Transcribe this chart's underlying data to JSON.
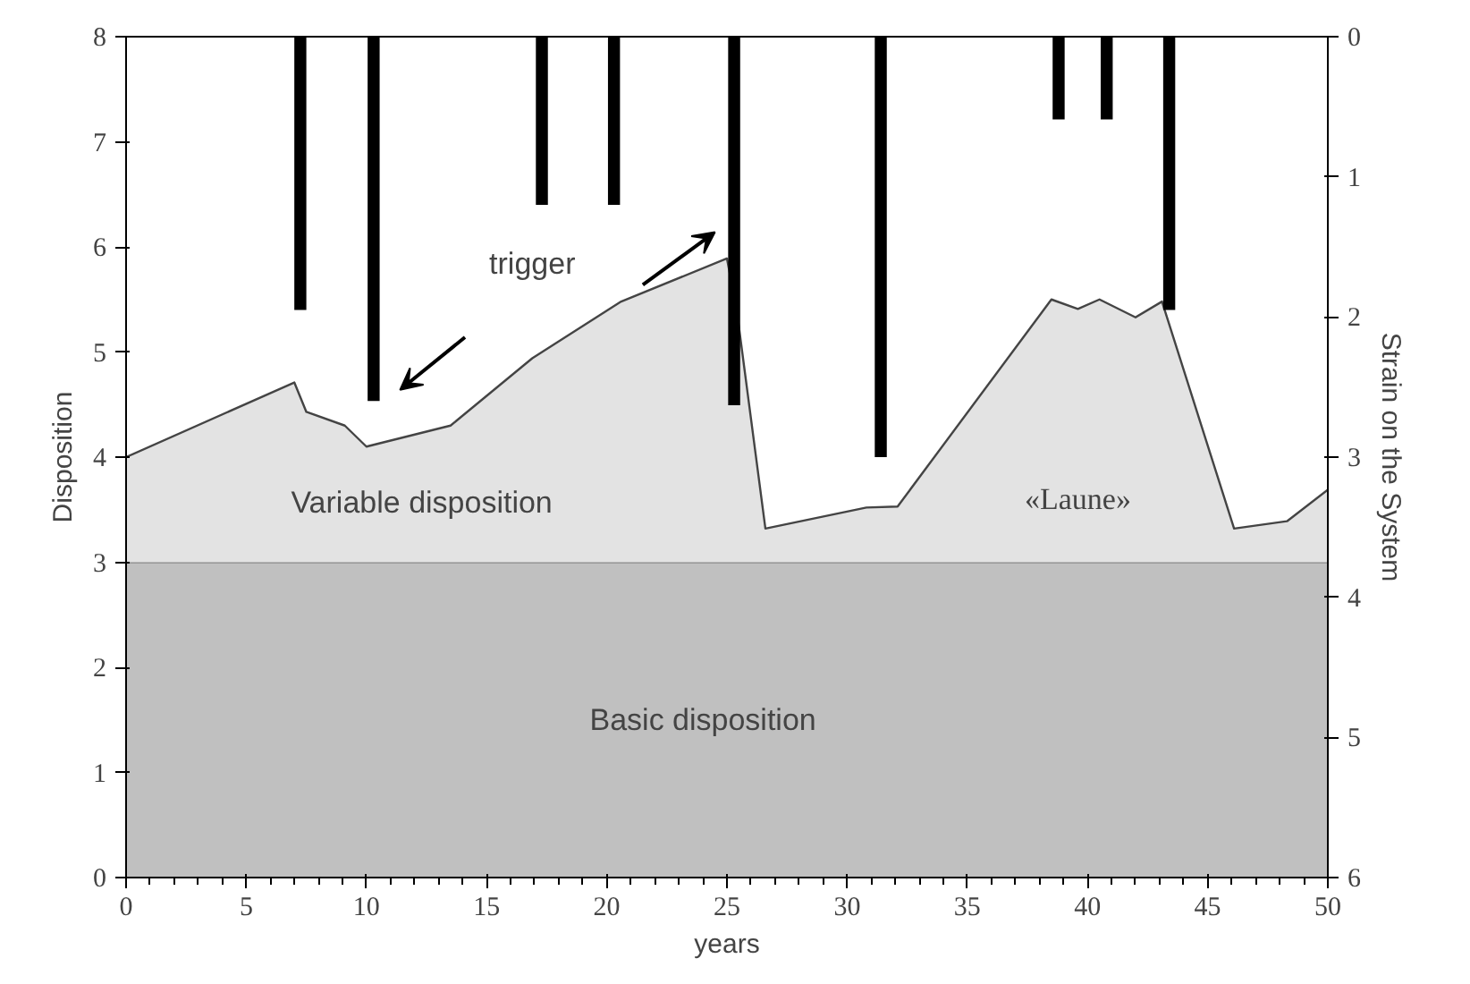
{
  "chart_data": {
    "type": "area",
    "stacked": true,
    "xlabel": "years",
    "ylabel": "Disposition",
    "y2label": "Strain on the System",
    "x": [
      0,
      7.0,
      7.5,
      9.1,
      10.0,
      13.5,
      16.9,
      20.6,
      25.0,
      25.4,
      26.6,
      30.8,
      32.1,
      38.5,
      39.6,
      40.5,
      42.0,
      43.1,
      46.1,
      48.3,
      50
    ],
    "series": [
      {
        "color": "#c0c0c0",
        "values": [
          3,
          3,
          3,
          3,
          3,
          3,
          3,
          3,
          3,
          3,
          3,
          3,
          3,
          3,
          3,
          3,
          3,
          3,
          3,
          3,
          3
        ]
      },
      {
        "color": "#e3e3e3",
        "values": [
          1.0,
          1.71,
          1.43,
          1.3,
          1.1,
          1.3,
          1.94,
          2.48,
          2.89,
          2.41,
          0.32,
          0.52,
          0.53,
          2.5,
          2.41,
          2.5,
          2.33,
          2.48,
          0.32,
          0.39,
          0.69
        ]
      },
      {
        "type": "bar",
        "axis": "y2",
        "color": "#000000",
        "x": [
          7.25,
          10.3,
          17.3,
          20.3,
          25.3,
          31.4,
          38.8,
          40.8,
          43.4
        ],
        "values": [
          1.95,
          2.6,
          1.2,
          1.2,
          2.63,
          3.0,
          0.59,
          0.59,
          1.95
        ]
      }
    ],
    "xlim": [
      0,
      50
    ],
    "xticks": [
      0,
      5,
      10,
      15,
      20,
      25,
      30,
      35,
      40,
      45,
      50
    ],
    "ylim": [
      0,
      8
    ],
    "yticks": [
      0,
      1,
      2,
      3,
      4,
      5,
      6,
      7,
      8
    ],
    "y2lim": [
      6,
      0
    ],
    "y2ticks": [
      0,
      1,
      2,
      3,
      4,
      5,
      6
    ],
    "grid": false,
    "annotations": [
      "trigger",
      "Variable disposition",
      "«Laune»",
      "Basic disposition"
    ]
  }
}
